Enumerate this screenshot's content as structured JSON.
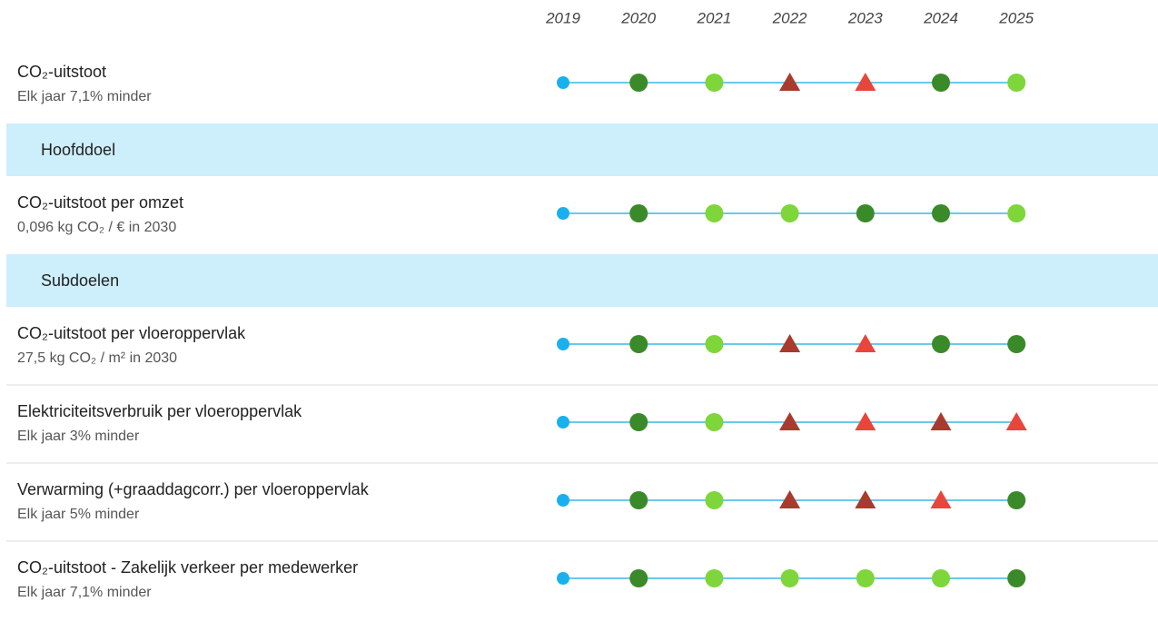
{
  "years": [
    "2019",
    "2020",
    "2021",
    "2022",
    "2023",
    "2024",
    "2025"
  ],
  "rows": [
    {
      "title": "CO₂-uitstoot",
      "subtitle": "Elk jaar 7,1% minder",
      "markers": [
        {
          "shape": "point",
          "color": "#1ab0ef"
        },
        {
          "shape": "circle",
          "color": "#3a8a2a"
        },
        {
          "shape": "circle",
          "color": "#7ed63a"
        },
        {
          "shape": "triangle",
          "color": "#a83a2e"
        },
        {
          "shape": "triangle",
          "color": "#e8453c"
        },
        {
          "shape": "circle",
          "color": "#3a8a2a"
        },
        {
          "shape": "circle",
          "color": "#7ed63a"
        }
      ]
    },
    {
      "label": "Hoofddoel"
    },
    {
      "title": "CO₂-uitstoot per omzet",
      "subtitle": "0,096 kg CO₂ / € in 2030",
      "markers": [
        {
          "shape": "point",
          "color": "#1ab0ef"
        },
        {
          "shape": "circle",
          "color": "#3a8a2a"
        },
        {
          "shape": "circle",
          "color": "#7ed63a"
        },
        {
          "shape": "circle",
          "color": "#7ed63a"
        },
        {
          "shape": "circle",
          "color": "#3a8a2a"
        },
        {
          "shape": "circle",
          "color": "#3a8a2a"
        },
        {
          "shape": "circle",
          "color": "#7ed63a"
        }
      ]
    },
    {
      "label": "Subdoelen"
    },
    {
      "title": "CO₂-uitstoot per vloeroppervlak",
      "subtitle": "27,5 kg CO₂ / m² in 2030",
      "markers": [
        {
          "shape": "point",
          "color": "#1ab0ef"
        },
        {
          "shape": "circle",
          "color": "#3a8a2a"
        },
        {
          "shape": "circle",
          "color": "#7ed63a"
        },
        {
          "shape": "triangle",
          "color": "#a83a2e"
        },
        {
          "shape": "triangle",
          "color": "#e8453c"
        },
        {
          "shape": "circle",
          "color": "#3a8a2a"
        },
        {
          "shape": "circle",
          "color": "#3a8a2a"
        }
      ]
    },
    {
      "title": "Elektriciteitsverbruik per vloeroppervlak",
      "subtitle": "Elk jaar 3% minder",
      "markers": [
        {
          "shape": "point",
          "color": "#1ab0ef"
        },
        {
          "shape": "circle",
          "color": "#3a8a2a"
        },
        {
          "shape": "circle",
          "color": "#7ed63a"
        },
        {
          "shape": "triangle",
          "color": "#a83a2e"
        },
        {
          "shape": "triangle",
          "color": "#e8453c"
        },
        {
          "shape": "triangle",
          "color": "#a83a2e"
        },
        {
          "shape": "triangle",
          "color": "#e8453c"
        }
      ]
    },
    {
      "title": "Verwarming (+graaddagcorr.) per vloeroppervlak",
      "subtitle": "Elk jaar 5% minder",
      "markers": [
        {
          "shape": "point",
          "color": "#1ab0ef"
        },
        {
          "shape": "circle",
          "color": "#3a8a2a"
        },
        {
          "shape": "circle",
          "color": "#7ed63a"
        },
        {
          "shape": "triangle",
          "color": "#a83a2e"
        },
        {
          "shape": "triangle",
          "color": "#a83a2e"
        },
        {
          "shape": "triangle",
          "color": "#e8453c"
        },
        {
          "shape": "circle",
          "color": "#3a8a2a"
        }
      ]
    },
    {
      "title": "CO₂-uitstoot - Zakelijk verkeer per medewerker",
      "subtitle": "Elk jaar 7,1% minder",
      "markers": [
        {
          "shape": "point",
          "color": "#1ab0ef"
        },
        {
          "shape": "circle",
          "color": "#3a8a2a"
        },
        {
          "shape": "circle",
          "color": "#7ed63a"
        },
        {
          "shape": "circle",
          "color": "#7ed63a"
        },
        {
          "shape": "circle",
          "color": "#7ed63a"
        },
        {
          "shape": "circle",
          "color": "#7ed63a"
        },
        {
          "shape": "circle",
          "color": "#3a8a2a"
        }
      ]
    }
  ]
}
